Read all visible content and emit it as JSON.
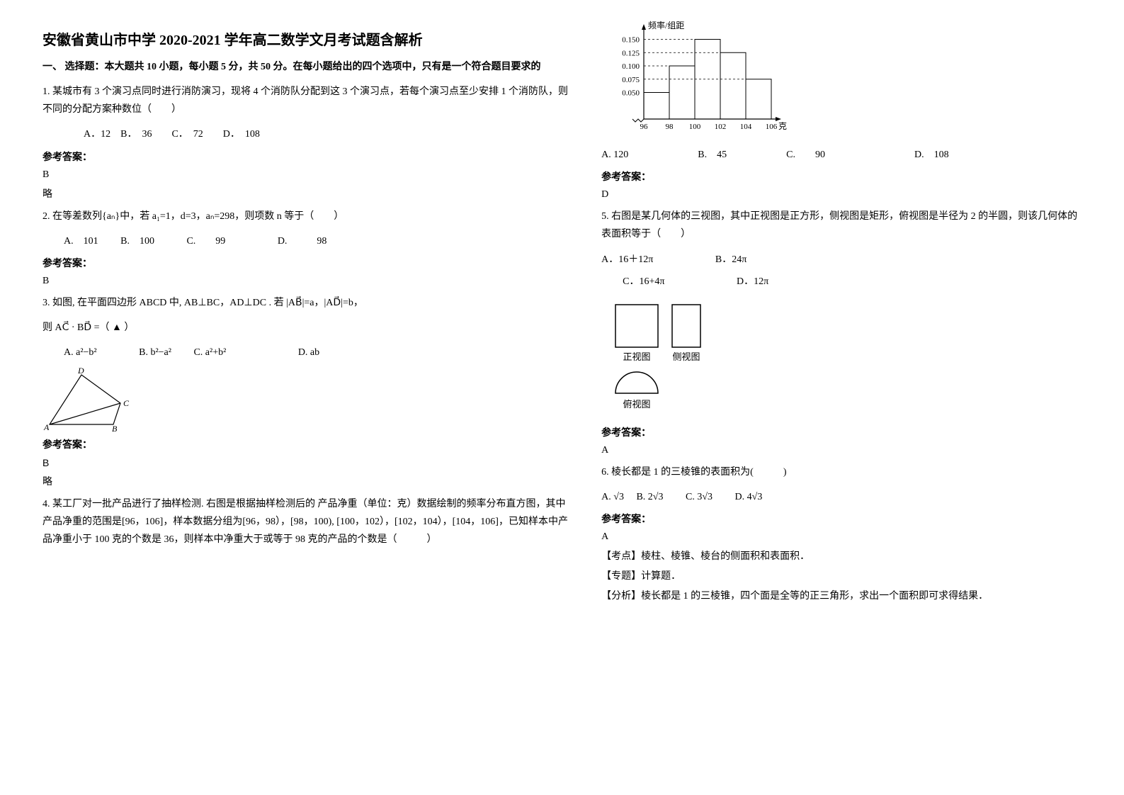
{
  "title": "安徽省黄山市中学 2020-2021 学年高二数学文月考试题含解析",
  "section1_heading": "一、 选择题：本大题共 10 小题，每小题 5 分，共 50 分。在每小题给出的四个选项中，只有是一个符合题目要求的",
  "q1": {
    "text": "1. 某城市有 3 个演习点同时进行消防演习，现将 4 个消防队分配到这 3 个演习点，若每个演习点至少安排 1 个消防队，则不同的分配方案种数位（　　）",
    "opts": "　　A．12　B．　36　　C．　72　　D．　108",
    "ans_label": "参考答案：",
    "ans": "B",
    "note": "略"
  },
  "q2": {
    "text": "2. 在等差数列{aₙ}中，若 a₁=1，d=3，aₙ=298，则项数 n 等于（　　）",
    "optA": "A.　101",
    "optB": "B.　100",
    "optC": "C.　　99",
    "optD": "D.　　　98",
    "ans_label": "参考答案：",
    "ans": "B"
  },
  "q3": {
    "text1": "3. 如图, 在平面四边形 ABCD 中, AB⊥BC，AD⊥DC . 若 |AB⃗|=a，|AD⃗|=b，",
    "text2": "则 AC⃗ · BD⃗ =（ ▲ ）",
    "optA": "A. a²−b²",
    "optB": "B. b²−a²",
    "optC": "C. a²+b²",
    "optD": "D. ab",
    "figure": {
      "A": "A",
      "B": "B",
      "C": "C",
      "D": "D",
      "stroke": "#000000"
    },
    "ans_label": "参考答案：",
    "ans": "B",
    "note": "略"
  },
  "q4": {
    "text": "4. 某工厂对一批产品进行了抽样检测. 右图是根据抽样检测后的 产品净重（单位：克）数据绘制的频率分布直方图，其中产品净重的范围是[96，106]，样本数据分组为[96，98），[98，100), [100，102），[102，104），[104，106]，已知样本中产品净重小于 100 克的个数是 36，则样本中净重大于或等于 98 克的产品的个数是（　　　）",
    "histogram": {
      "ylabel": "频率/组距",
      "xlabel": "克",
      "xticks": [
        "96",
        "98",
        "100",
        "102",
        "104",
        "106"
      ],
      "yticks": [
        "0.050",
        "0.075",
        "0.100",
        "0.125",
        "0.150"
      ],
      "yvalues": [
        0.05,
        0.075,
        0.1,
        0.125,
        0.15
      ],
      "bars": [
        0.05,
        0.1,
        0.15,
        0.125,
        0.075
      ],
      "axis_color": "#000000",
      "dash_color": "#000000",
      "bg": "#ffffff"
    },
    "opts": "A. 120　　　　　　　B.　45　　　　　　C.　　90　　　　　　　　　D.　108",
    "ans_label": "参考答案：",
    "ans": "D"
  },
  "q5": {
    "text": "5. 右图是某几何体的三视图，其中正视图是正方形，侧视图是矩形，俯视图是半径为 2 的半圆，则该几何体的表面积等于（　　）",
    "optA": "A．16＋12π",
    "optB": "B．24π",
    "optC": "C．16+4π",
    "optD": "D．12π",
    "views": {
      "front": "正视图",
      "side": "侧视图",
      "top": "俯视图",
      "stroke": "#000000"
    },
    "ans_label": "参考答案：",
    "ans": "A"
  },
  "q6": {
    "text": "6. 棱长都是 1 的三棱锥的表面积为(　　　)",
    "optA": "A. √3",
    "optB": "B. 2√3",
    "optC": "C. 3√3",
    "optD": "D. 4√3",
    "ans_label": "参考答案：",
    "ans": "A",
    "pt1": "【考点】棱柱、棱锥、棱台的侧面积和表面积．",
    "pt2": "【专题】计算题．",
    "pt3": "【分析】棱长都是 1 的三棱锥，四个面是全等的正三角形，求出一个面积即可求得结果．"
  }
}
